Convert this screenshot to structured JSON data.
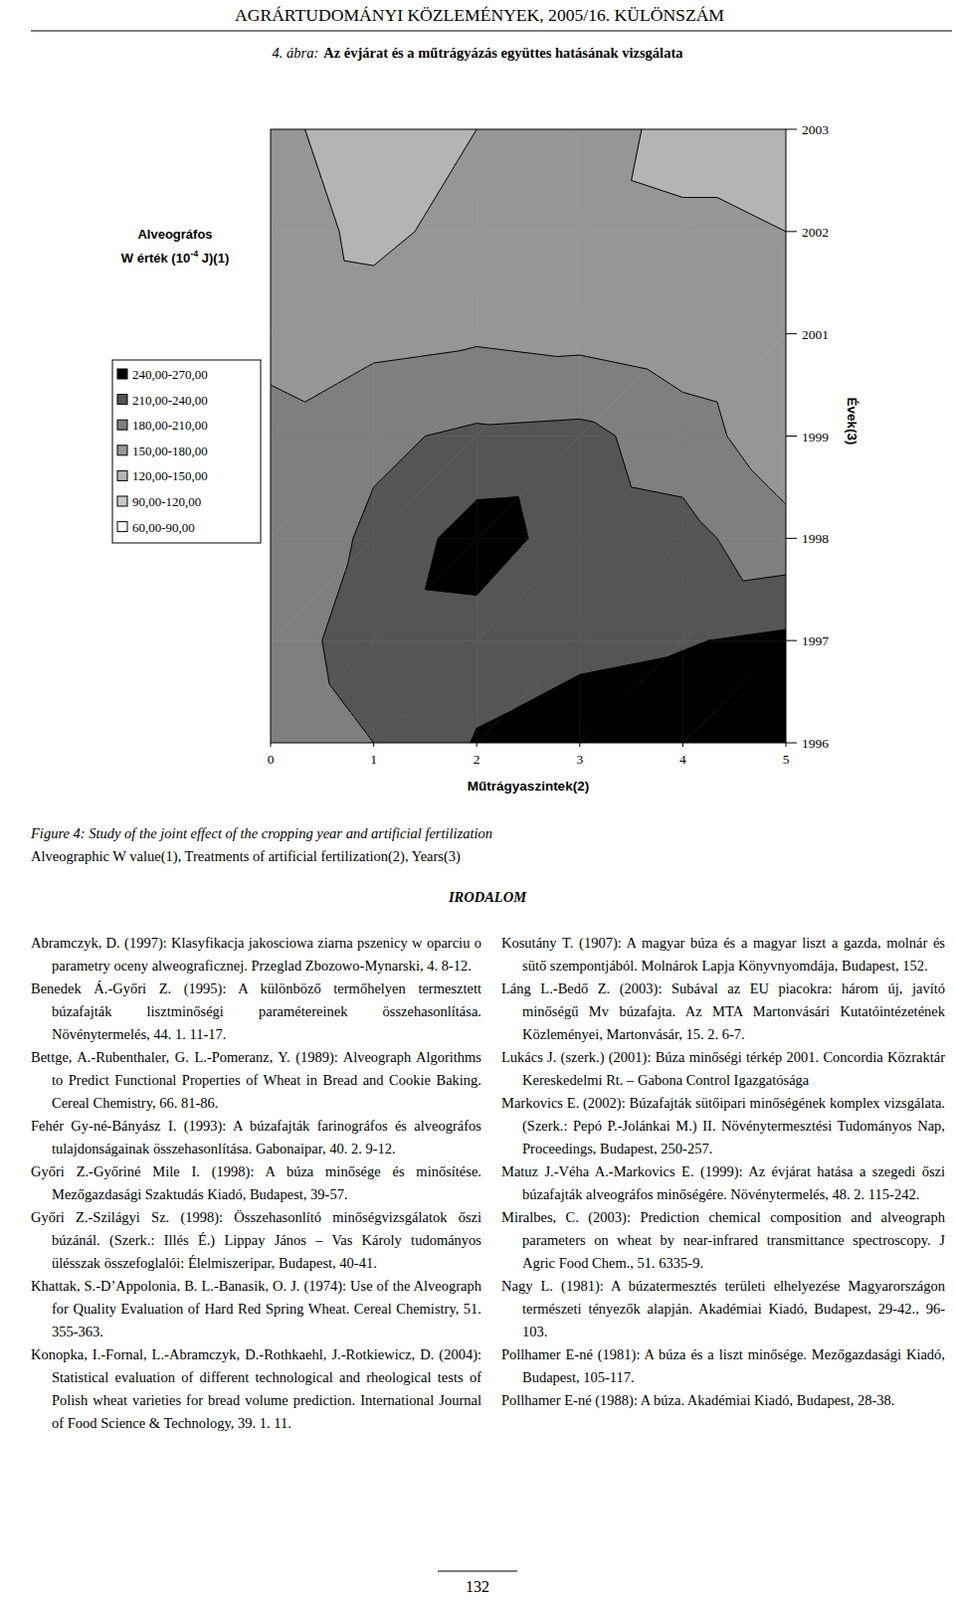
{
  "header": "AGRÁRTUDOMÁNYI KÖZLEMÉNYEK, 2005/16. KÜLÖNSZÁM",
  "chart_data": {
    "type": "contour",
    "figure_label": "4. ábra:",
    "title": "Az évjárat és a műtrágyázás együttes hatásának vizsgálata",
    "legend_title": "Alveográfos",
    "legend_unit": {
      "text": "W érték (10",
      "exponent": "-4",
      "suffix": " J)(1)"
    },
    "x_label": "Műtrágyaszintek(2)",
    "y_label": "Évek(3)",
    "x": [
      0,
      1,
      2,
      3,
      4,
      5
    ],
    "xlim": [
      0,
      5
    ],
    "xticks": [
      0,
      1,
      2,
      3,
      4,
      5
    ],
    "categories": [
      "1996",
      "1997",
      "1998",
      "1999",
      "2001",
      "2002",
      "2003"
    ],
    "z": [
      [
        190,
        210,
        242,
        250,
        258,
        265
      ],
      [
        195,
        225,
        228,
        235,
        238,
        246
      ],
      [
        190,
        215,
        255,
        225,
        220,
        190
      ],
      [
        185,
        205,
        215,
        218,
        195,
        160
      ],
      [
        175,
        170,
        175,
        170,
        160,
        150
      ],
      [
        170,
        140,
        165,
        160,
        155,
        150
      ],
      [
        160,
        130,
        150,
        165,
        140,
        140
      ]
    ],
    "bands": [
      {
        "from": 60,
        "to": 90,
        "label": "60,00-90,00",
        "color": "#ffffff"
      },
      {
        "from": 90,
        "to": 120,
        "label": "90,00-120,00",
        "color": "#c8c8c8"
      },
      {
        "from": 120,
        "to": 150,
        "label": "120,00-150,00",
        "color": "#b4b4b4"
      },
      {
        "from": 150,
        "to": 180,
        "label": "150,00-180,00",
        "color": "#969696"
      },
      {
        "from": 180,
        "to": 210,
        "label": "180,00-210,00",
        "color": "#7f7f7f"
      },
      {
        "from": 210,
        "to": 240,
        "label": "210,00-240,00",
        "color": "#555555"
      },
      {
        "from": 240,
        "to": 270,
        "label": "240,00-270,00",
        "color": "#000000"
      }
    ],
    "grid": false
  },
  "caption": {
    "english_title": "Figure 4: Study of the joint effect of the cropping year and artificial fertilization",
    "legend_note": "Alveographic W value(1), Treatments of artificial fertilization(2), Years(3)"
  },
  "references": {
    "title": "IRODALOM",
    "left": [
      "Abramczyk, D. (1997): Klasyfikacja jakosciowa ziarna pszenicy w oparciu o parametry oceny alweograficznej. Przeglad Zbozowo-Mynarski, 4. 8-12.",
      "Benedek Á.-Győri Z. (1995): A különböző termőhelyen termesztett búzafajták lisztminőségi paramétereinek összehasonlítása. Növénytermelés, 44. 1. 11-17.",
      "Bettge, A.-Rubenthaler, G. L.-Pomeranz, Y. (1989): Alveograph Algorithms to Predict Functional Properties of Wheat in Bread and Cookie Baking. Cereal Chemistry, 66. 81-86.",
      "Fehér Gy-né-Bányász I. (1993): A búzafajták farinográfos és alveográfos tulajdonságainak összehasonlítása. Gabonaipar, 40. 2. 9-12.",
      "Győri Z.-Győriné Mile I. (1998): A búza minősége és minősítése. Mezőgazdasági Szaktudás Kiadó, Budapest, 39-57.",
      "Győri Z.-Szilágyi Sz. (1998): Összehasonlító minőségvizsgálatok őszi búzánál. (Szerk.: Illés É.) Lippay János – Vas Károly tudományos ülésszak összefoglalói: Élelmiszeripar, Budapest, 40-41.",
      "Khattak, S.-D’Appolonia, B. L.-Banasik, O. J. (1974): Use of the Alveograph for Quality Evaluation of Hard Red Spring Wheat. Cereal Chemistry, 51. 355-363.",
      "Konopka, I.-Fornal, L.-Abramczyk, D.-Rothkaehl, J.-Rotkiewicz, D. (2004): Statistical evaluation of different technological and rheological tests of Polish wheat varieties for bread volume prediction. International Journal of Food Science & Technology, 39. 1. 11."
    ],
    "right": [
      "Kosutány T. (1907): A magyar búza és a magyar liszt a gazda, molnár és sütő szempontjából. Molnárok Lapja Könyvnyomdája, Budapest, 152.",
      "Láng L.-Bedő Z. (2003): Subával az EU piacokra: három új, javító minőségű Mv búzafajta. Az MTA Martonvásári Kutatóintézetének Közleményei, Martonvásár, 15. 2. 6-7.",
      "Lukács J. (szerk.) (2001): Búza minőségi térkép 2001. Concordia Közraktár Kereskedelmi Rt. – Gabona Control Igazgatósága",
      "Markovics E. (2002): Búzafajták sütőipari minőségének komplex vizsgálata. (Szerk.: Pepó P.-Jolánkai M.) II. Növénytermesztési Tudományos Nap, Proceedings, Budapest, 250-257.",
      "Matuz J.-Véha A.-Markovics E. (1999): Az évjárat hatása a szegedi őszi búzafajták alveográfos minőségére. Növénytermelés, 48. 2. 115-242.",
      "Miralbes, C. (2003): Prediction chemical composition and alveograph parameters on wheat by near-infrared transmittance spectroscopy. J Agric Food Chem., 51. 6335-9.",
      "Nagy L. (1981): A búzatermesztés területi elhelyezése Magyarországon természeti tényezők alapján. Akadémiai Kiadó, Budapest, 29-42., 96-103.",
      "Pollhamer E-né (1981): A búza és a liszt minősége. Mezőgazdasági Kiadó, Budapest, 105-117.",
      "Pollhamer E-né (1988): A búza. Akadémiai Kiadó, Budapest, 28-38."
    ]
  },
  "page_number": "132"
}
